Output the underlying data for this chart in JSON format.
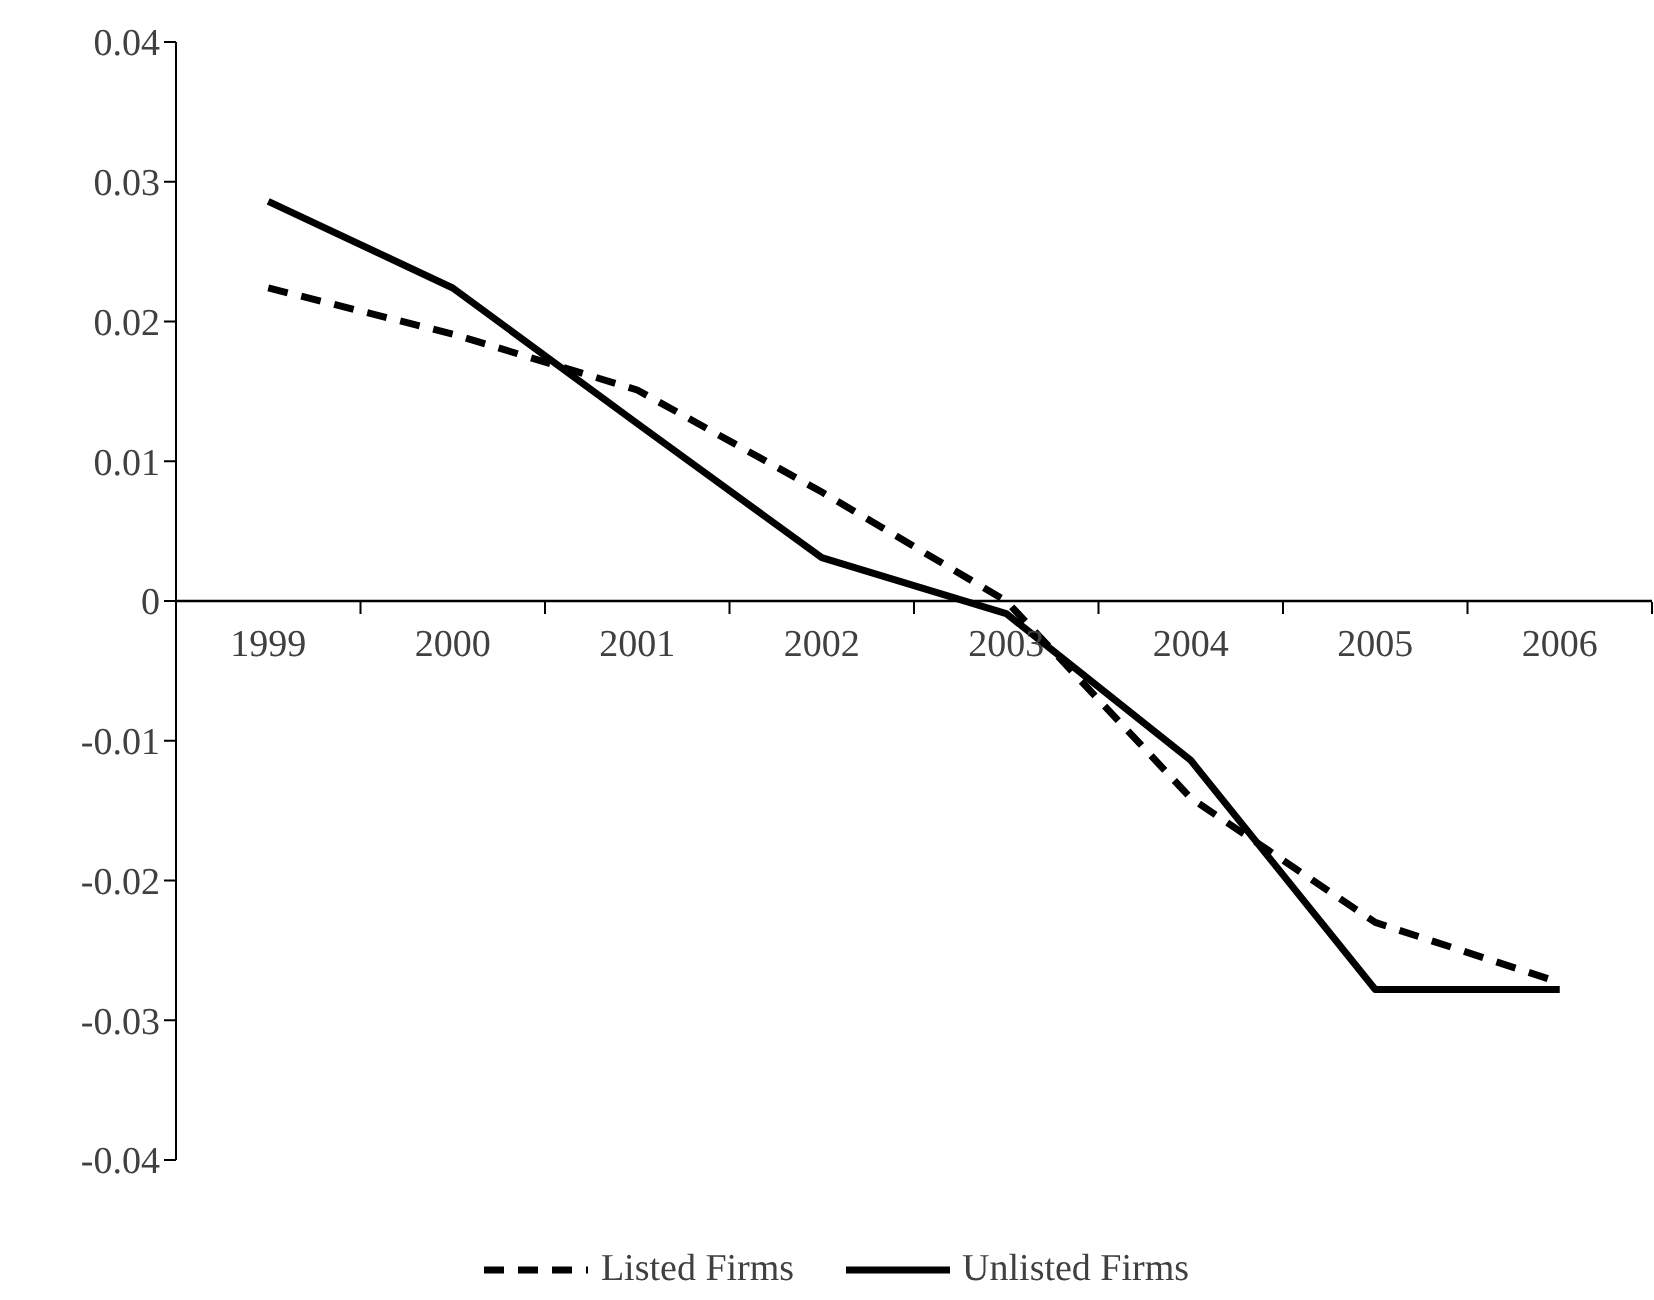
{
  "chart_data": {
    "type": "line",
    "categories": [
      "1999",
      "2000",
      "2001",
      "2002",
      "2003",
      "2004",
      "2005",
      "2006"
    ],
    "series": [
      {
        "name": "Listed Firms",
        "color": "#000000",
        "line_style": "dashed",
        "values": [
          0.0224,
          0.0191,
          0.0151,
          0.0078,
          0.0,
          -0.0141,
          -0.023,
          -0.0273
        ]
      },
      {
        "name": "Unlisted Firms",
        "color": "#000000",
        "line_style": "solid",
        "values": [
          0.0286,
          0.0224,
          0.0127,
          0.0031,
          -0.0009,
          -0.0114,
          -0.0278,
          -0.0278
        ]
      }
    ],
    "ylim": [
      -0.04,
      0.04
    ],
    "yticks": [
      -0.04,
      -0.03,
      -0.02,
      -0.01,
      0,
      0.01,
      0.02,
      0.03,
      0.04
    ],
    "grid": false,
    "legend": "bottom",
    "marker": "none"
  }
}
